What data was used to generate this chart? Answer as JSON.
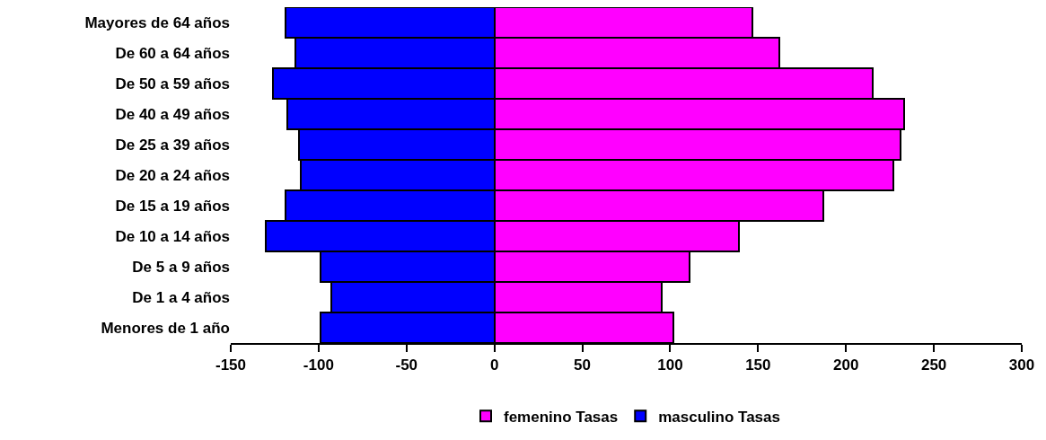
{
  "chart_data": {
    "type": "bar",
    "orientation": "horizontal",
    "categories": [
      "Mayores de 64 años",
      "De 60 a 64 años",
      "De 50 a 59 años",
      "De 40 a 49 años",
      "De 25 a 39 años",
      "De 20 a 24 años",
      "De 15 a 19 años",
      "De 10 a 14 años",
      "De 5 a 9 años",
      "De 1 a 4 años",
      "Menores de 1 año"
    ],
    "series": [
      {
        "name": "femenino Tasas",
        "color": "#ff00ff",
        "values": [
          147,
          162,
          215,
          233,
          231,
          227,
          187,
          139,
          111,
          95,
          102
        ]
      },
      {
        "name": "masculino Tasas",
        "color": "#0000ff",
        "values": [
          -119,
          -113,
          -126,
          -118,
          -111,
          -110,
          -119,
          -130,
          -99,
          -93,
          -99
        ]
      }
    ],
    "xlim": [
      -150,
      300
    ],
    "xticks": [
      -150,
      -100,
      -50,
      0,
      50,
      100,
      150,
      200,
      250,
      300
    ],
    "stacked": true,
    "legend": "bottom"
  }
}
